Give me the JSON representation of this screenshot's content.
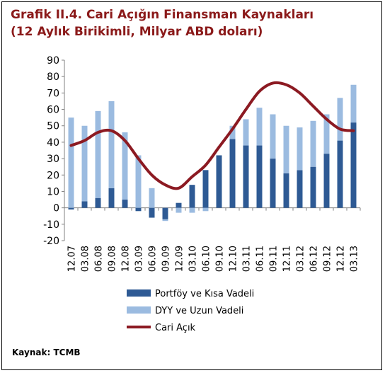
{
  "title_line1": "Grafik II.4. Cari Açığın Finansman Kaynakları",
  "title_line2": "(12 Aylık Birikimli, Milyar ABD doları)",
  "source": "Kaynak: TCMB",
  "colors": {
    "title": "#8b1a1a",
    "portfoy": "#2e5a94",
    "dyy": "#9bbbe0",
    "cari": "#8c1a22"
  },
  "chart_data": {
    "type": "bar",
    "categories": [
      "12.07",
      "03.08",
      "06.08",
      "09.08",
      "12.08",
      "03.09",
      "06.09",
      "09.09",
      "12.09",
      "03.10",
      "06.10",
      "09.10",
      "12.10",
      "03.11",
      "06.11",
      "09.11",
      "12.11",
      "03.12",
      "06.12",
      "09.12",
      "12.12",
      "03.13"
    ],
    "ylim": [
      -20,
      90
    ],
    "yticks": [
      -20,
      -10,
      0,
      10,
      20,
      30,
      40,
      50,
      60,
      70,
      80,
      90
    ],
    "stacked": true,
    "grid": false,
    "legend_position": "bottom",
    "series": [
      {
        "name": "Portföy ve Kısa Vadeli",
        "kind": "bar",
        "values": [
          -1,
          4,
          6,
          12,
          5,
          -2,
          -6,
          -7,
          3,
          14,
          23,
          32,
          42,
          38,
          38,
          30,
          21,
          23,
          25,
          33,
          41,
          52
        ]
      },
      {
        "name": "DYY ve Uzun Vadeli",
        "kind": "bar",
        "values": [
          55,
          46,
          53,
          53,
          41,
          32,
          12,
          -1,
          -3,
          -3,
          -2,
          0,
          8,
          16,
          23,
          27,
          29,
          26,
          28,
          24,
          26,
          23
        ]
      },
      {
        "name": "Cari Açık",
        "kind": "line",
        "values": [
          38,
          41,
          46,
          47,
          41,
          30,
          20,
          14,
          12,
          19,
          26,
          37,
          48,
          60,
          71,
          76,
          75,
          70,
          62,
          54,
          48,
          47
        ]
      }
    ]
  }
}
